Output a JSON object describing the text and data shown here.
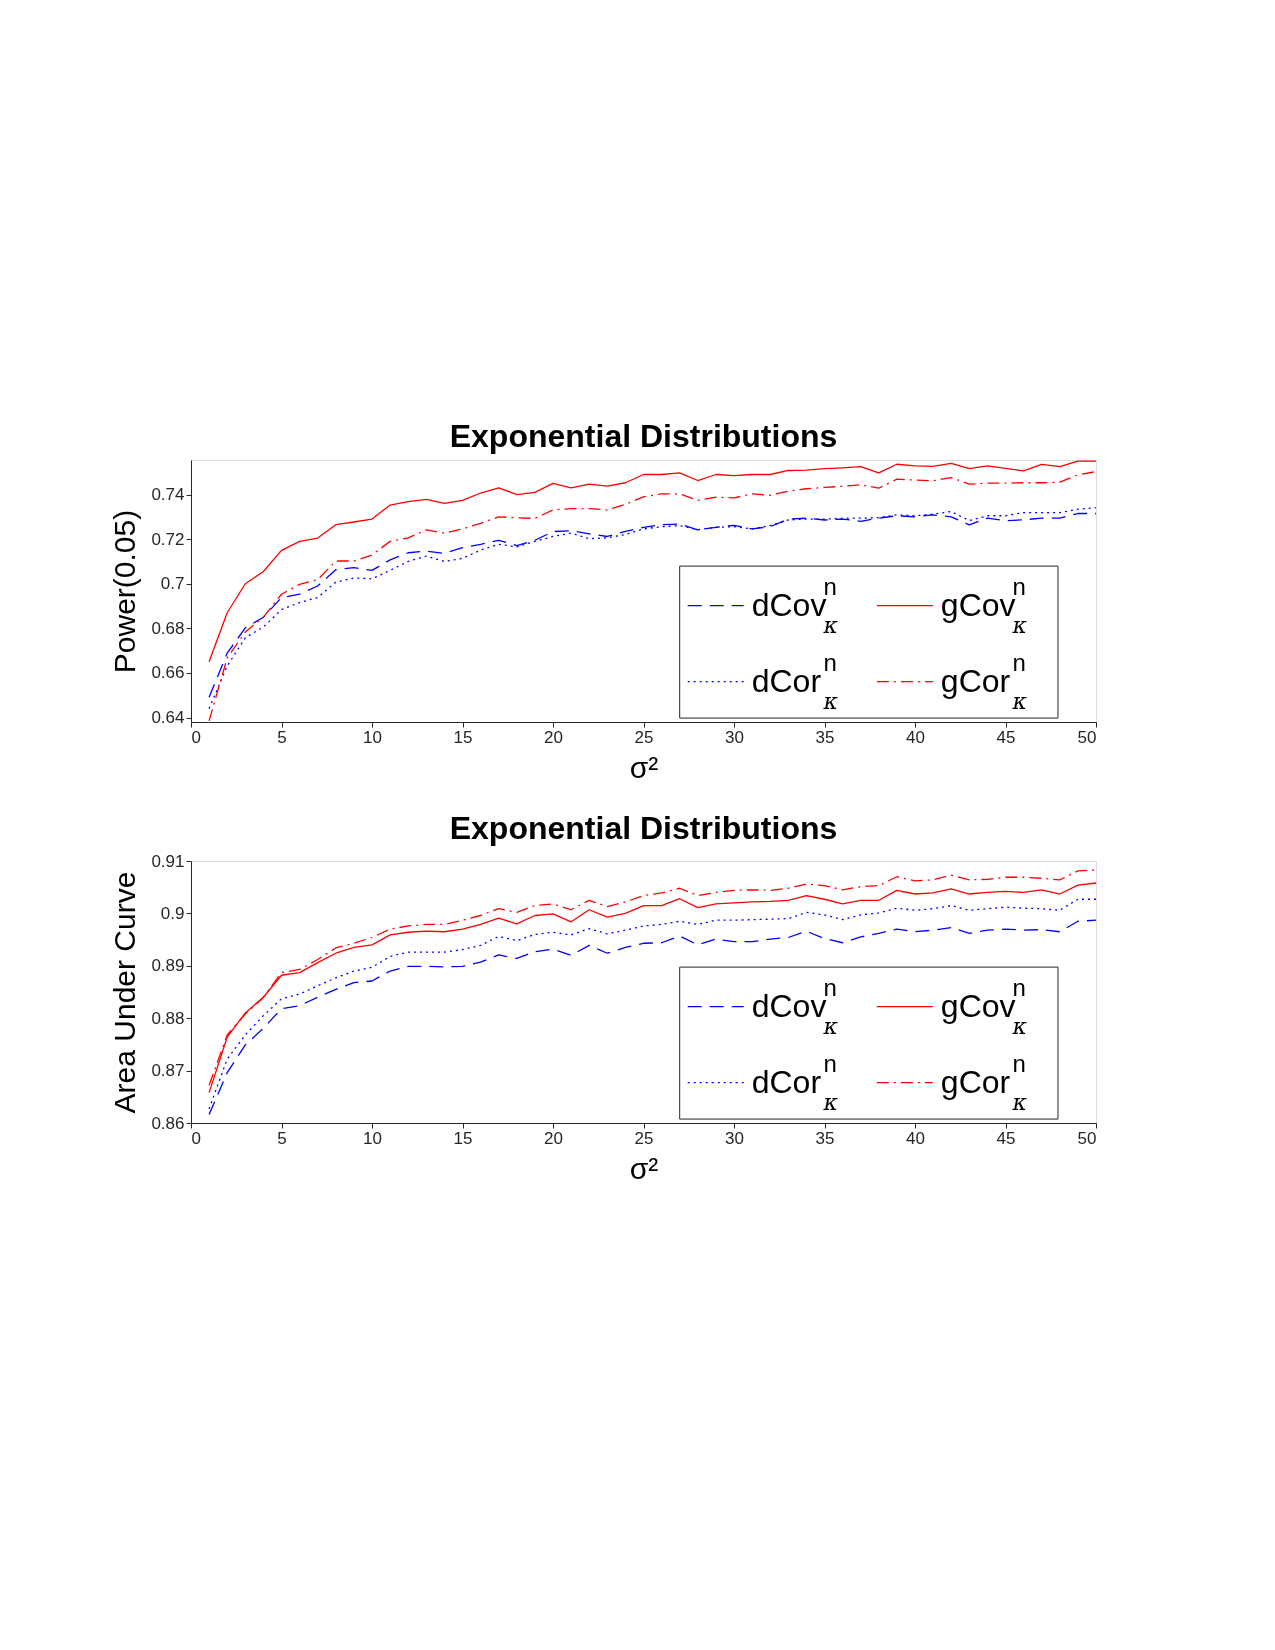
{
  "chart_data": [
    {
      "type": "line",
      "title": "Exponential Distributions",
      "xlabel": "σ²",
      "ylabel": "Power(0.05)",
      "x": [
        1,
        2,
        3,
        4,
        5,
        6,
        7,
        8,
        9,
        10,
        11,
        12,
        13,
        14,
        15,
        16,
        17,
        18,
        19,
        20,
        21,
        22,
        23,
        24,
        25,
        26,
        27,
        28,
        29,
        30,
        31,
        32,
        33,
        34,
        35,
        36,
        37,
        38,
        39,
        40,
        41,
        42,
        43,
        44,
        45,
        46,
        47,
        48,
        49,
        50
      ],
      "xlim": [
        0,
        50
      ],
      "xticks": [
        0,
        5,
        10,
        15,
        20,
        25,
        30,
        35,
        40,
        45,
        50
      ],
      "ylim": [
        0.638,
        0.7555
      ],
      "yticks": [
        0.64,
        0.66,
        0.68,
        0.7,
        0.72,
        0.74
      ],
      "grid": false,
      "legend": "bottom right",
      "series": [
        {
          "name": "dCov$^{n}$$_{κ}$",
          "color": "#0000ff",
          "line_style": "dashed",
          "values": [
            0.6491,
            0.6689,
            0.6802,
            0.685,
            0.6938,
            0.6953,
            0.699,
            0.7063,
            0.7072,
            0.706,
            0.7107,
            0.7139,
            0.7146,
            0.7136,
            0.7162,
            0.7177,
            0.7195,
            0.7171,
            0.7195,
            0.7234,
            0.7238,
            0.7224,
            0.7212,
            0.7235,
            0.7253,
            0.7265,
            0.7268,
            0.7242,
            0.7253,
            0.7262,
            0.7246,
            0.7256,
            0.729,
            0.7294,
            0.7286,
            0.729,
            0.728,
            0.7294,
            0.7305,
            0.73,
            0.7309,
            0.73,
            0.7264,
            0.7294,
            0.7283,
            0.7287,
            0.7294,
            0.7294,
            0.7315,
            0.7315
          ]
        },
        {
          "name": "gCov$^{n}$$_{κ}$",
          "color": "#ff0000",
          "line_style": "solid",
          "values": [
            0.665,
            0.687,
            0.7,
            0.7055,
            0.715,
            0.719,
            0.7205,
            0.7265,
            0.7277,
            0.729,
            0.7353,
            0.7368,
            0.7378,
            0.736,
            0.7374,
            0.7407,
            0.743,
            0.74,
            0.741,
            0.745,
            0.743,
            0.7447,
            0.7438,
            0.7453,
            0.749,
            0.749,
            0.7497,
            0.7463,
            0.749,
            0.7485,
            0.749,
            0.749,
            0.7508,
            0.751,
            0.7516,
            0.752,
            0.7525,
            0.7497,
            0.7536,
            0.7529,
            0.7526,
            0.754,
            0.7516,
            0.7529,
            0.7517,
            0.7506,
            0.7535,
            0.7525,
            0.755,
            0.755
          ]
        },
        {
          "name": "dCor$^{n}$$_{κ}$",
          "color": "#0000ff",
          "line_style": "dotted",
          "values": [
            0.644,
            0.6631,
            0.6758,
            0.6806,
            0.6884,
            0.6916,
            0.6938,
            0.7007,
            0.7026,
            0.7022,
            0.706,
            0.71,
            0.7124,
            0.71,
            0.7114,
            0.7151,
            0.7177,
            0.7165,
            0.719,
            0.7212,
            0.7227,
            0.7202,
            0.7206,
            0.7221,
            0.7246,
            0.7256,
            0.7261,
            0.7242,
            0.7253,
            0.7256,
            0.7246,
            0.7261,
            0.7286,
            0.729,
            0.729,
            0.7294,
            0.7294,
            0.7297,
            0.7309,
            0.7305,
            0.7312,
            0.7324,
            0.7283,
            0.7305,
            0.7305,
            0.7319,
            0.7319,
            0.7319,
            0.7334,
            0.7341
          ]
        },
        {
          "name": "gCor$^{n}$$_{κ}$",
          "color": "#ff0000",
          "line_style": "dashdot",
          "values": [
            0.6385,
            0.6667,
            0.6784,
            0.685,
            0.6953,
            0.6997,
            0.7019,
            0.7102,
            0.7102,
            0.7129,
            0.719,
            0.7206,
            0.7242,
            0.7227,
            0.7246,
            0.7271,
            0.73,
            0.7296,
            0.7293,
            0.7331,
            0.7337,
            0.7337,
            0.7331,
            0.7356,
            0.739,
            0.7403,
            0.7403,
            0.7374,
            0.7388,
            0.7385,
            0.7403,
            0.7397,
            0.7415,
            0.7426,
            0.7432,
            0.7437,
            0.7444,
            0.7429,
            0.7469,
            0.7465,
            0.7462,
            0.7476,
            0.7447,
            0.7451,
            0.7451,
            0.7453,
            0.7453,
            0.7456,
            0.7488,
            0.7503
          ]
        }
      ]
    },
    {
      "type": "line",
      "title": "Exponential Distributions",
      "xlabel": "σ²",
      "ylabel": "Area Under Curve",
      "x": [
        1,
        2,
        3,
        4,
        5,
        6,
        7,
        8,
        9,
        10,
        11,
        12,
        13,
        14,
        15,
        16,
        17,
        18,
        19,
        20,
        21,
        22,
        23,
        24,
        25,
        26,
        27,
        28,
        29,
        30,
        31,
        32,
        33,
        34,
        35,
        36,
        37,
        38,
        39,
        40,
        41,
        42,
        43,
        44,
        45,
        46,
        47,
        48,
        49,
        50
      ],
      "xlim": [
        0,
        50
      ],
      "xticks": [
        0,
        5,
        10,
        15,
        20,
        25,
        30,
        35,
        40,
        45,
        50
      ],
      "ylim": [
        0.86,
        0.91
      ],
      "yticks": [
        0.86,
        0.87,
        0.88,
        0.89,
        0.9,
        0.91
      ],
      "grid": false,
      "legend": "bottom right",
      "series": [
        {
          "name": "dCov$^{n}$$_{κ}$",
          "color": "#0000ff",
          "line_style": "dashed",
          "values": [
            0.8616,
            0.8696,
            0.8749,
            0.8781,
            0.8818,
            0.8824,
            0.884,
            0.8855,
            0.8868,
            0.8871,
            0.889,
            0.8899,
            0.8899,
            0.8898,
            0.8899,
            0.8907,
            0.8921,
            0.8914,
            0.8927,
            0.8932,
            0.892,
            0.8939,
            0.8924,
            0.8935,
            0.8943,
            0.8944,
            0.8957,
            0.894,
            0.8951,
            0.8946,
            0.8946,
            0.8951,
            0.8954,
            0.8966,
            0.8952,
            0.8944,
            0.8955,
            0.8962,
            0.897,
            0.8965,
            0.8968,
            0.8973,
            0.8962,
            0.8968,
            0.897,
            0.8968,
            0.8969,
            0.8965,
            0.8985,
            0.8987
          ]
        },
        {
          "name": "gCov$^{n}$$_{κ}$",
          "color": "#ff0000",
          "line_style": "solid",
          "values": [
            0.8658,
            0.8764,
            0.881,
            0.884,
            0.8882,
            0.8887,
            0.8906,
            0.8924,
            0.8935,
            0.894,
            0.8959,
            0.8964,
            0.8966,
            0.8965,
            0.897,
            0.8979,
            0.8991,
            0.898,
            0.8996,
            0.8999,
            0.8984,
            0.9007,
            0.8993,
            0.9,
            0.9015,
            0.9015,
            0.9028,
            0.9011,
            0.9018,
            0.902,
            0.9022,
            0.9023,
            0.9025,
            0.9034,
            0.9027,
            0.9018,
            0.9025,
            0.9025,
            0.9044,
            0.9037,
            0.9039,
            0.9047,
            0.9037,
            0.904,
            0.9042,
            0.904,
            0.9045,
            0.9037,
            0.9054,
            0.9058
          ]
        },
        {
          "name": "dCor$^{n}$$_{κ}$",
          "color": "#0000ff",
          "line_style": "dotted",
          "values": [
            0.8627,
            0.8722,
            0.8768,
            0.8805,
            0.8837,
            0.8846,
            0.8862,
            0.8877,
            0.889,
            0.8897,
            0.8918,
            0.8926,
            0.8926,
            0.8926,
            0.8931,
            0.8939,
            0.8956,
            0.8948,
            0.896,
            0.8964,
            0.8959,
            0.8971,
            0.8961,
            0.8968,
            0.8976,
            0.8979,
            0.8985,
            0.8979,
            0.8987,
            0.8987,
            0.8988,
            0.8989,
            0.899,
            0.9002,
            0.8997,
            0.8988,
            0.8997,
            0.9001,
            0.901,
            0.9006,
            0.9009,
            0.9015,
            0.9006,
            0.9009,
            0.9012,
            0.901,
            0.9009,
            0.9006,
            0.9027,
            0.9027
          ]
        },
        {
          "name": "gCor$^{n}$$_{κ}$",
          "color": "#ff0000",
          "line_style": "dashdot",
          "values": [
            0.8672,
            0.8768,
            0.8808,
            0.884,
            0.8887,
            0.8893,
            0.8912,
            0.8934,
            0.8943,
            0.8954,
            0.897,
            0.8976,
            0.8979,
            0.8979,
            0.8987,
            0.8996,
            0.9009,
            0.9002,
            0.9015,
            0.9018,
            0.9007,
            0.9025,
            0.9013,
            0.9022,
            0.9034,
            0.9039,
            0.9048,
            0.9034,
            0.904,
            0.9044,
            0.9045,
            0.9044,
            0.9048,
            0.9056,
            0.9053,
            0.9045,
            0.9051,
            0.9053,
            0.907,
            0.9062,
            0.9064,
            0.9073,
            0.9064,
            0.9065,
            0.9069,
            0.9069,
            0.9067,
            0.9064,
            0.9081,
            0.9083
          ]
        }
      ]
    }
  ]
}
